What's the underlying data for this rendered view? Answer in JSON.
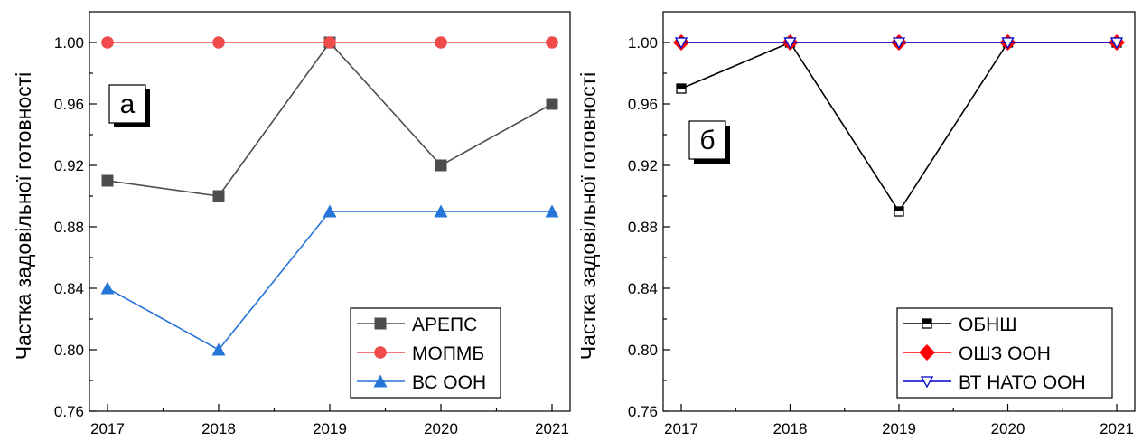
{
  "chart_data": [
    {
      "type": "line",
      "panel_label": "а",
      "ylabel": "Частка задовільної готовності",
      "categories": [
        "2017",
        "2018",
        "2019",
        "2020",
        "2021"
      ],
      "ylim": [
        0.76,
        1.02
      ],
      "yticks": [
        "0.76",
        "0.80",
        "0.84",
        "0.88",
        "0.92",
        "0.96",
        "1.00"
      ],
      "legend_position": "bottom-right",
      "series": [
        {
          "name": "АРЕПС",
          "values": [
            0.91,
            0.9,
            1.0,
            0.92,
            0.96
          ],
          "color": "#4d4d4d",
          "marker": "square-filled"
        },
        {
          "name": "МОПМБ",
          "values": [
            1.0,
            1.0,
            1.0,
            1.0,
            1.0
          ],
          "color": "#ef4b4b",
          "marker": "circle-filled"
        },
        {
          "name": "ВС ООН",
          "values": [
            0.84,
            0.8,
            0.89,
            0.89,
            0.89
          ],
          "color": "#2675d9",
          "marker": "triangle-up-filled"
        }
      ]
    },
    {
      "type": "line",
      "panel_label": "б",
      "ylabel": "Частка задовільної готовності",
      "categories": [
        "2017",
        "2018",
        "2019",
        "2020",
        "2021"
      ],
      "ylim": [
        0.76,
        1.02
      ],
      "yticks": [
        "0.76",
        "0.80",
        "0.84",
        "0.88",
        "0.92",
        "0.96",
        "1.00"
      ],
      "legend_position": "bottom-right",
      "series": [
        {
          "name": "ОБНШ",
          "values": [
            0.97,
            1.0,
            0.89,
            1.0,
            1.0
          ],
          "color": "#000000",
          "marker": "square-half"
        },
        {
          "name": "ОШЗ ООН",
          "values": [
            1.0,
            1.0,
            1.0,
            1.0,
            1.0
          ],
          "color": "#ff0000",
          "marker": "diamond-filled"
        },
        {
          "name": "ВТ НАТО ООН",
          "values": [
            1.0,
            1.0,
            1.0,
            1.0,
            1.0
          ],
          "color": "#0000cc",
          "marker": "triangle-down-open"
        }
      ]
    }
  ]
}
